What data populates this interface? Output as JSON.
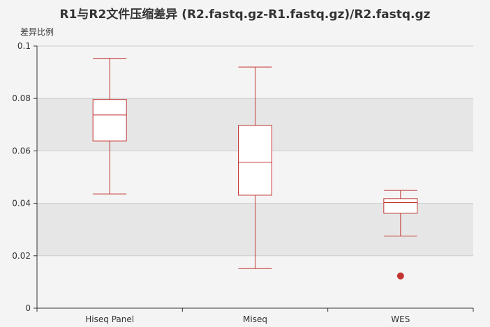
{
  "chart_data": {
    "type": "boxplot",
    "title": "R1与R2文件压缩差异 (R2.fastq.gz-R1.fastq.gz)/R2.fastq.gz",
    "ylabel": "差异比例",
    "xlabel": "",
    "ylim": [
      0,
      0.1
    ],
    "yticks": [
      "0",
      "0.02",
      "0.04",
      "0.06",
      "0.08",
      "0.1"
    ],
    "categories": [
      "Hiseq Panel",
      "Miseq",
      "WES"
    ],
    "boxes": [
      {
        "category": "Hiseq Panel",
        "min": 0.0436,
        "q1": 0.0638,
        "median": 0.0737,
        "q3": 0.0796,
        "max": 0.0953
      },
      {
        "category": "Miseq",
        "min": 0.0151,
        "q1": 0.0431,
        "median": 0.0557,
        "q3": 0.0697,
        "max": 0.092
      },
      {
        "category": "WES",
        "min": 0.0275,
        "q1": 0.0362,
        "median": 0.0403,
        "q3": 0.0418,
        "max": 0.0449
      }
    ],
    "outliers": [
      {
        "category": "WES",
        "value": 0.0123
      }
    ],
    "grid": true,
    "colors": {
      "box_stroke": "#c23531",
      "box_fill": "#ffffff",
      "outlier": "#c23531",
      "band_light": "#f4f4f4",
      "band_dark": "#e6e6e6",
      "axis": "#333333",
      "gridline": "#cccccc"
    }
  }
}
